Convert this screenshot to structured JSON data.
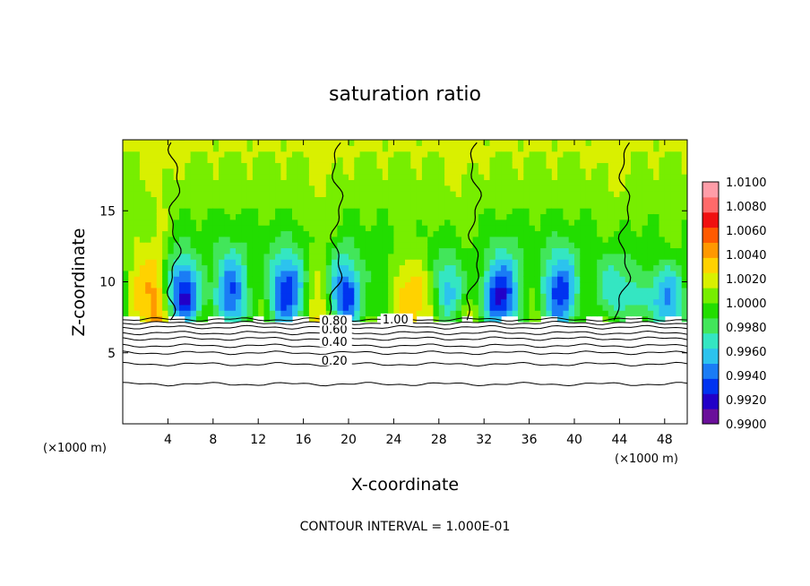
{
  "chart_data": {
    "type": "heatmap",
    "title": "saturation ratio",
    "xlabel": "X-coordinate",
    "ylabel": "Z-coordinate",
    "x_unit_left": "(×1000 m)",
    "x_unit_right": "(×1000 m)",
    "xlim": [
      0,
      50
    ],
    "ylim": [
      0,
      20
    ],
    "x_ticks": [
      4,
      8,
      12,
      16,
      20,
      24,
      28,
      32,
      36,
      40,
      44,
      48
    ],
    "y_ticks": [
      5,
      10,
      15
    ],
    "footnote": "CONTOUR INTERVAL = 1.000E-01",
    "colorbar": {
      "min": 0.99,
      "max": 1.01,
      "ticks": [
        "1.0100",
        "1.0080",
        "1.0060",
        "1.0040",
        "1.0020",
        "1.0000",
        "0.9980",
        "0.9960",
        "0.9940",
        "0.9920",
        "0.9900"
      ]
    },
    "contour_labels": [
      {
        "text": "0.20",
        "x": 17.6,
        "z": 4.3
      },
      {
        "text": "0.40",
        "x": 17.6,
        "z": 5.6
      },
      {
        "text": "0.60",
        "x": 17.6,
        "z": 6.5
      },
      {
        "text": "0.80",
        "x": 17.6,
        "z": 7.1
      },
      {
        "text": "1.00",
        "x": 23.0,
        "z": 7.2
      }
    ],
    "contour_levels": [
      0.2,
      0.3,
      0.4,
      0.5,
      0.6,
      0.7,
      0.8,
      0.9,
      1.0
    ],
    "cloud_base_z": 7.3,
    "subsaturated_plumes_x": [
      4.6,
      19.0,
      31.2,
      44.5
    ]
  }
}
